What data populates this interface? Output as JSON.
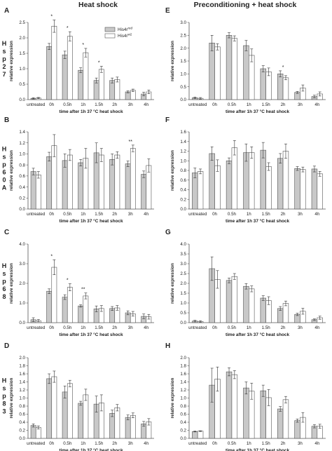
{
  "figure": {
    "col_titles": [
      "Heat shock",
      "Preconditioning + heat shock"
    ],
    "legend": {
      "series": [
        {
          "label": "His4r",
          "sup": "red",
          "fill": "#c8c8c8"
        },
        {
          "label": "His4r",
          "sup": "w2",
          "fill": "#ffffff"
        }
      ]
    },
    "colors": {
      "bar_mutant": "#c8c8c8",
      "bar_control": "#ffffff",
      "stroke": "#555555",
      "text": "#222222"
    }
  },
  "chart_data": [
    {
      "type": "bar",
      "id": "A",
      "letter": "A",
      "gene": "Hsp27",
      "categories": [
        "untreated",
        "0h",
        "0.5h",
        "1h",
        "1.5h",
        "2h",
        "3h",
        "4h"
      ],
      "xlabel": "time after 1h 37 °C heat shock",
      "ylabel": "relative expression",
      "ylim": [
        0,
        2.5
      ],
      "yticks": [
        0,
        0.5,
        1.0,
        1.5,
        2.0,
        2.5
      ],
      "yfmt": 1,
      "series": [
        {
          "values": [
            0.04,
            1.72,
            1.45,
            0.95,
            0.62,
            0.62,
            0.25,
            0.18
          ],
          "err": [
            0.02,
            0.1,
            0.12,
            0.08,
            0.08,
            0.08,
            0.03,
            0.06
          ]
        },
        {
          "values": [
            0.05,
            2.38,
            2.05,
            1.52,
            0.98,
            0.65,
            0.3,
            0.25
          ],
          "err": [
            0.02,
            0.2,
            0.15,
            0.14,
            0.1,
            0.08,
            0.04,
            0.06
          ]
        }
      ],
      "annotations": [
        {
          "cat": 1,
          "text": "*"
        },
        {
          "cat": 2,
          "text": "*"
        },
        {
          "cat": 3,
          "text": "*"
        },
        {
          "cat": 4,
          "text": "*"
        }
      ]
    },
    {
      "type": "bar",
      "id": "B",
      "letter": "B",
      "gene": "Hsp60A",
      "categories": [
        "untreated",
        "0h",
        "0.5h",
        "1h",
        "1.5h",
        "2h",
        "3h",
        "4h"
      ],
      "xlabel": "time after 1h 37 °C heat shock",
      "ylabel": "relative expression",
      "ylim": [
        0,
        1.4
      ],
      "yticks": [
        0,
        0.2,
        0.4,
        0.6,
        0.8,
        1.0,
        1.2,
        1.4
      ],
      "yfmt": 1,
      "series": [
        {
          "values": [
            0.68,
            0.95,
            0.88,
            0.84,
            1.02,
            0.9,
            0.82,
            0.63
          ],
          "err": [
            0.06,
            0.08,
            0.12,
            0.06,
            0.18,
            0.1,
            0.05,
            0.06
          ]
        },
        {
          "values": [
            0.62,
            1.15,
            0.98,
            0.92,
            0.98,
            0.98,
            1.1,
            0.79
          ],
          "err": [
            0.06,
            0.2,
            0.1,
            0.18,
            0.12,
            0.06,
            0.06,
            0.12
          ]
        }
      ],
      "annotations": [
        {
          "cat": 6,
          "text": "**"
        }
      ]
    },
    {
      "type": "bar",
      "id": "C",
      "letter": "C",
      "gene": "Hsp68",
      "categories": [
        "untreated",
        "0h",
        "0.5h",
        "1h",
        "1.5h",
        "2h",
        "3h",
        "4h"
      ],
      "xlabel": "time after 1h 37 °C heat shock",
      "ylabel": "relative expression",
      "ylim": [
        0,
        4.0
      ],
      "yticks": [
        0,
        1.0,
        2.0,
        3.0,
        4.0
      ],
      "yfmt": 1,
      "series": [
        {
          "values": [
            0.15,
            1.6,
            1.3,
            0.85,
            0.7,
            0.72,
            0.5,
            0.32
          ],
          "err": [
            0.1,
            0.12,
            0.12,
            0.06,
            0.15,
            0.1,
            0.1,
            0.12
          ]
        },
        {
          "values": [
            0.1,
            2.82,
            1.8,
            1.36,
            0.72,
            0.75,
            0.45,
            0.3
          ],
          "err": [
            0.06,
            0.38,
            0.18,
            0.15,
            0.15,
            0.12,
            0.12,
            0.12
          ]
        }
      ],
      "annotations": [
        {
          "cat": 1,
          "text": "*"
        },
        {
          "cat": 2,
          "text": "*"
        },
        {
          "cat": 3,
          "text": "**"
        }
      ]
    },
    {
      "type": "bar",
      "id": "D",
      "letter": "D",
      "gene": "Hsp83",
      "categories": [
        "untreated",
        "0h",
        "0.5h",
        "1h",
        "1.5h",
        "2h",
        "3h",
        "4h"
      ],
      "xlabel": "time after 1h 37 °C heat shock",
      "ylabel": "relative expression",
      "ylim": [
        0,
        2.0
      ],
      "yticks": [
        0,
        0.2,
        0.4,
        0.6,
        0.8,
        1.0,
        1.2,
        1.4,
        1.6,
        1.8,
        2.0
      ],
      "yfmt": 1,
      "series": [
        {
          "values": [
            0.32,
            1.48,
            1.15,
            0.87,
            0.85,
            0.62,
            0.52,
            0.36
          ],
          "err": [
            0.04,
            0.12,
            0.15,
            0.05,
            0.2,
            0.08,
            0.06,
            0.06
          ]
        },
        {
          "values": [
            0.27,
            1.53,
            1.36,
            1.08,
            0.88,
            0.76,
            0.57,
            0.41
          ],
          "err": [
            0.04,
            0.14,
            0.08,
            0.14,
            0.2,
            0.08,
            0.06,
            0.08
          ]
        }
      ],
      "annotations": []
    },
    {
      "type": "bar",
      "id": "E",
      "letter": "E",
      "gene": "",
      "categories": [
        "untreated",
        "0h",
        "0.5h",
        "1h",
        "1.5h",
        "2h",
        "3h",
        "4h"
      ],
      "xlabel": "time after 1h 37 °C heat shock",
      "ylabel": "relative expression",
      "ylim": [
        0,
        3.0
      ],
      "yticks": [
        0,
        0.5,
        1.0,
        1.5,
        2.0,
        2.5,
        3.0
      ],
      "yfmt": 1,
      "series": [
        {
          "values": [
            0.07,
            2.2,
            2.5,
            2.1,
            1.2,
            1.0,
            0.28,
            0.12
          ],
          "err": [
            0.03,
            0.3,
            0.1,
            0.2,
            0.12,
            0.12,
            0.04,
            0.05
          ]
        },
        {
          "values": [
            0.05,
            2.05,
            2.38,
            1.72,
            1.08,
            0.85,
            0.45,
            0.22
          ],
          "err": [
            0.03,
            0.12,
            0.1,
            0.25,
            0.15,
            0.08,
            0.12,
            0.08
          ]
        }
      ],
      "annotations": [
        {
          "cat": 5,
          "text": "*"
        }
      ]
    },
    {
      "type": "bar",
      "id": "F",
      "letter": "F",
      "gene": "",
      "categories": [
        "untreated",
        "0h",
        "0.5h",
        "1h",
        "1.5h",
        "2h",
        "3h",
        "4h"
      ],
      "xlabel": "time after 1h 37 °C heat shock",
      "ylabel": "relative expression",
      "ylim": [
        0,
        1.6
      ],
      "yticks": [
        0,
        0.2,
        0.4,
        0.6,
        0.8,
        1.0,
        1.2,
        1.4,
        1.6
      ],
      "yfmt": 1,
      "series": [
        {
          "values": [
            0.75,
            1.15,
            1.0,
            1.17,
            1.22,
            1.05,
            0.84,
            0.83
          ],
          "err": [
            0.1,
            0.14,
            0.06,
            0.18,
            0.16,
            0.1,
            0.04,
            0.06
          ]
        },
        {
          "values": [
            0.78,
            0.9,
            1.27,
            1.17,
            0.88,
            1.2,
            0.82,
            0.73
          ],
          "err": [
            0.05,
            0.12,
            0.15,
            0.12,
            0.08,
            0.15,
            0.05,
            0.05
          ]
        }
      ],
      "annotations": []
    },
    {
      "type": "bar",
      "id": "G",
      "letter": "G",
      "gene": "",
      "categories": [
        "untreated",
        "0h",
        "0.5h",
        "1h",
        "1.5h",
        "2h",
        "3h",
        "4h"
      ],
      "xlabel": "time after 1h 37 °C heat shock",
      "ylabel": "relative expression",
      "ylim": [
        0,
        4.0
      ],
      "yticks": [
        0,
        0.5,
        1.0,
        1.5,
        2.0,
        2.5,
        3.0,
        3.5,
        4.0
      ],
      "yfmt": 1,
      "series": [
        {
          "values": [
            0.08,
            2.75,
            2.15,
            1.85,
            1.25,
            0.72,
            0.42,
            0.15
          ],
          "err": [
            0.04,
            0.6,
            0.12,
            0.14,
            0.12,
            0.1,
            0.06,
            0.04
          ]
        },
        {
          "values": [
            0.06,
            2.2,
            2.35,
            1.72,
            1.12,
            0.98,
            0.58,
            0.25
          ],
          "err": [
            0.04,
            0.45,
            0.15,
            0.15,
            0.2,
            0.12,
            0.15,
            0.08
          ]
        }
      ],
      "annotations": []
    },
    {
      "type": "bar",
      "id": "H",
      "letter": "H",
      "gene": "",
      "categories": [
        "untreated",
        "0h",
        "0.5h",
        "1h",
        "1.5h",
        "2h",
        "3h",
        "4h"
      ],
      "xlabel": "time after 1h 37 °C heat shock",
      "ylabel": "relative expression",
      "ylim": [
        0,
        2.0
      ],
      "yticks": [
        0,
        0.2,
        0.4,
        0.6,
        0.8,
        1.0,
        1.2,
        1.4,
        1.6,
        1.8,
        2.0
      ],
      "yfmt": 1,
      "series": [
        {
          "values": [
            0.17,
            1.32,
            1.65,
            1.25,
            1.18,
            0.73,
            0.44,
            0.3
          ],
          "err": [
            0.01,
            0.42,
            0.1,
            0.15,
            0.14,
            0.06,
            0.04,
            0.04
          ]
        },
        {
          "values": [
            0.18,
            1.47,
            1.58,
            1.17,
            1.01,
            0.96,
            0.52,
            0.3
          ],
          "err": [
            0.01,
            0.3,
            0.1,
            0.2,
            0.2,
            0.08,
            0.12,
            0.05
          ]
        }
      ],
      "annotations": []
    }
  ]
}
